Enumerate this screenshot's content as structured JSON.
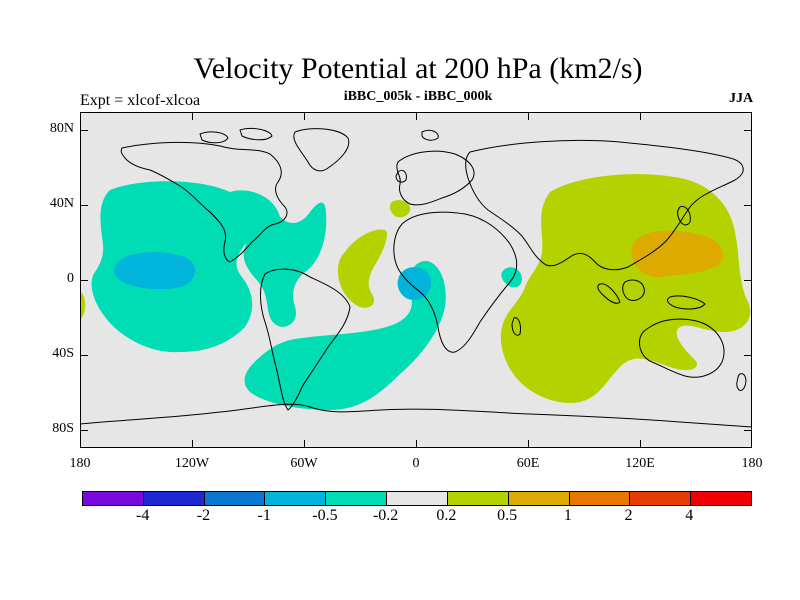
{
  "title": "Velocity Potential at 200 hPa (km2/s)",
  "subtitle_left": "Expt = xlcof-xlcoa",
  "subtitle_center": "iBBC_005k - iBBC_000k",
  "subtitle_right": "JJA",
  "lat_ticks": [
    "80N",
    "40N",
    "0",
    "40S",
    "80S"
  ],
  "lon_ticks": [
    "180",
    "120W",
    "60W",
    "0",
    "60E",
    "120E",
    "180"
  ],
  "colorbar": {
    "colors": [
      "#7A0ADC",
      "#1E28D2",
      "#0A78D2",
      "#00B4DC",
      "#00DCB4",
      "#E6E6E6",
      "#B4D200",
      "#DCAA00",
      "#E67800",
      "#E63C00",
      "#F00000"
    ],
    "labels": [
      "-4",
      "-2",
      "-1",
      "-0.5",
      "-0.2",
      "0.2",
      "0.5",
      "1",
      "2",
      "4"
    ]
  },
  "map": {
    "ocean_color": "#E6E6E6",
    "negative_light": "#00DCB4",
    "negative_medium": "#00B4DC",
    "positive_light": "#B4D200",
    "positive_medium": "#DCAA00"
  }
}
